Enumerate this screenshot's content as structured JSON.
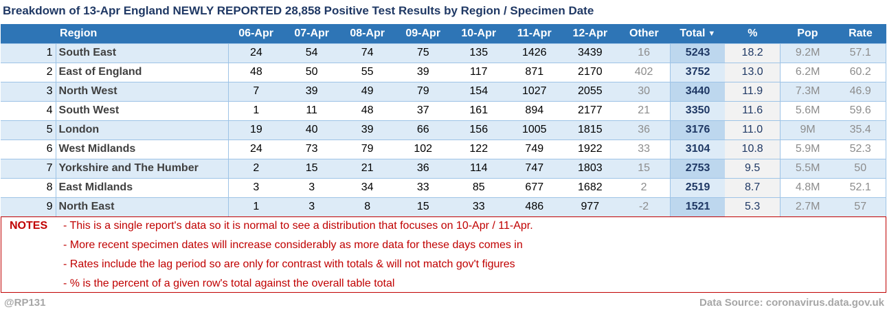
{
  "title": "Breakdown of 13-Apr England NEWLY REPORTED 28,858 Positive Test Results by Region / Specimen Date",
  "table": {
    "headers": {
      "region": "Region",
      "d1": "06-Apr",
      "d2": "07-Apr",
      "d3": "08-Apr",
      "d4": "09-Apr",
      "d5": "10-Apr",
      "d6": "11-Apr",
      "d7": "12-Apr",
      "other": "Other",
      "total": "Total",
      "pct": "%",
      "pop": "Pop",
      "rate": "Rate"
    },
    "sort_icon": "sort-descending-icon",
    "rows": [
      {
        "rank": "1",
        "region": "South East",
        "d1": "24",
        "d2": "54",
        "d3": "74",
        "d4": "75",
        "d5": "135",
        "d6": "1426",
        "d7": "3439",
        "other": "16",
        "total": "5243",
        "pct": "18.2",
        "pop": "9.2M",
        "rate": "57.1"
      },
      {
        "rank": "2",
        "region": "East of England",
        "d1": "48",
        "d2": "50",
        "d3": "55",
        "d4": "39",
        "d5": "117",
        "d6": "871",
        "d7": "2170",
        "other": "402",
        "total": "3752",
        "pct": "13.0",
        "pop": "6.2M",
        "rate": "60.2"
      },
      {
        "rank": "3",
        "region": "North West",
        "d1": "7",
        "d2": "39",
        "d3": "49",
        "d4": "79",
        "d5": "154",
        "d6": "1027",
        "d7": "2055",
        "other": "30",
        "total": "3440",
        "pct": "11.9",
        "pop": "7.3M",
        "rate": "46.9"
      },
      {
        "rank": "4",
        "region": "South West",
        "d1": "1",
        "d2": "11",
        "d3": "48",
        "d4": "37",
        "d5": "161",
        "d6": "894",
        "d7": "2177",
        "other": "21",
        "total": "3350",
        "pct": "11.6",
        "pop": "5.6M",
        "rate": "59.6"
      },
      {
        "rank": "5",
        "region": "London",
        "d1": "19",
        "d2": "40",
        "d3": "39",
        "d4": "66",
        "d5": "156",
        "d6": "1005",
        "d7": "1815",
        "other": "36",
        "total": "3176",
        "pct": "11.0",
        "pop": "9M",
        "rate": "35.4"
      },
      {
        "rank": "6",
        "region": "West Midlands",
        "d1": "24",
        "d2": "73",
        "d3": "79",
        "d4": "102",
        "d5": "122",
        "d6": "749",
        "d7": "1922",
        "other": "33",
        "total": "3104",
        "pct": "10.8",
        "pop": "5.9M",
        "rate": "52.3"
      },
      {
        "rank": "7",
        "region": "Yorkshire and The Humber",
        "d1": "2",
        "d2": "15",
        "d3": "21",
        "d4": "36",
        "d5": "114",
        "d6": "747",
        "d7": "1803",
        "other": "15",
        "total": "2753",
        "pct": "9.5",
        "pop": "5.5M",
        "rate": "50"
      },
      {
        "rank": "8",
        "region": "East Midlands",
        "d1": "3",
        "d2": "3",
        "d3": "34",
        "d4": "33",
        "d5": "85",
        "d6": "677",
        "d7": "1682",
        "other": "2",
        "total": "2519",
        "pct": "8.7",
        "pop": "4.8M",
        "rate": "52.1"
      },
      {
        "rank": "9",
        "region": "North East",
        "d1": "1",
        "d2": "3",
        "d3": "8",
        "d4": "15",
        "d5": "33",
        "d6": "486",
        "d7": "977",
        "other": "-2",
        "total": "1521",
        "pct": "5.3",
        "pop": "2.7M",
        "rate": "57"
      }
    ]
  },
  "notes": {
    "label": "NOTES",
    "lines": [
      "- This is a single report's data so it is normal to see a distribution that focuses on 10-Apr / 11-Apr.",
      "- More recent specimen dates will increase considerably as more data for these days comes in",
      "- Rates include the lag period so are only for contrast with totals & will not match gov't figures",
      "- % is the percent of a given row's total against the overall table total"
    ]
  },
  "footer": {
    "author": "@RP131",
    "source": "Data Source: coronavirus.data.gov.uk"
  }
}
